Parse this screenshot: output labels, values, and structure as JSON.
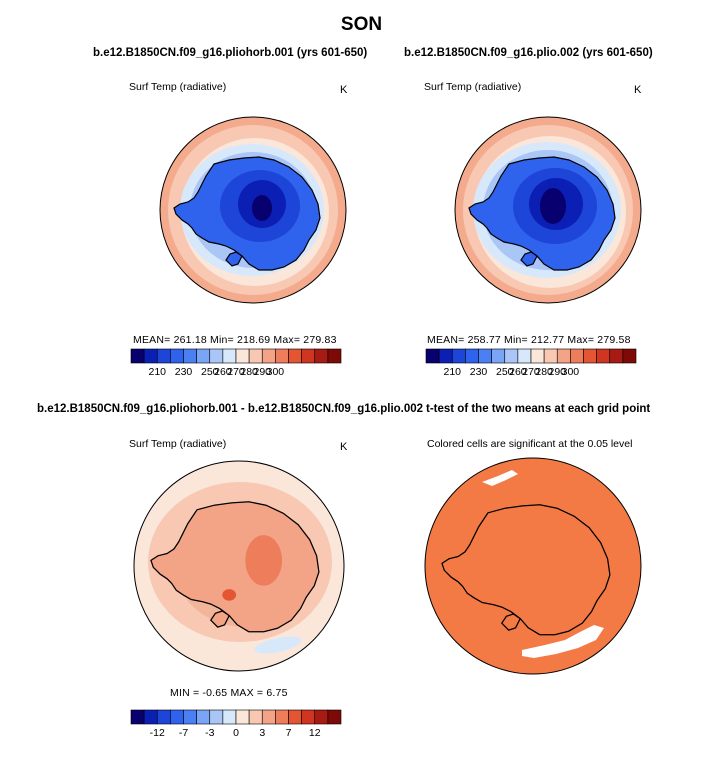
{
  "figure": {
    "title": "SON"
  },
  "panels": {
    "top_left": {
      "title": "b.e12.B1850CN.f09_g16.pliohorb.001 (yrs 601-650)",
      "variable": "Surf Temp (radiative)",
      "unit": "K",
      "stats": "MEAN= 261.18   Min= 218.69   Max= 279.83",
      "colorbar_ticks": [
        "210",
        "230",
        "250",
        "260",
        "270",
        "280",
        "290",
        "300"
      ]
    },
    "top_right": {
      "title": "b.e12.B1850CN.f09_g16.plio.002 (yrs 601-650)",
      "variable": "Surf Temp (radiative)",
      "unit": "K",
      "stats": "MEAN= 258.77   Min= 212.77   Max= 279.58",
      "colorbar_ticks": [
        "210",
        "230",
        "250",
        "260",
        "270",
        "280",
        "290",
        "300"
      ]
    },
    "bottom_left": {
      "title": "b.e12.B1850CN.f09_g16.pliohorb.001 - b.e12.B1850CN.f09_g16.plio.002",
      "variable": "Surf Temp (radiative)",
      "unit": "K",
      "stats": "MIN =  -0.65  MAX =   6.75",
      "colorbar_ticks": [
        "-12",
        "-7",
        "-3",
        "0",
        "3",
        "7",
        "12"
      ]
    },
    "bottom_right": {
      "title": "t-test of the two means at each grid point",
      "note": "Colored cells are significant at the 0.05 level"
    }
  },
  "colors": {
    "abs_scale": [
      "#08006e",
      "#0c1fb5",
      "#1d45d8",
      "#2f63ee",
      "#4a80f4",
      "#7aa4f5",
      "#a9c6f7",
      "#d8e8fb",
      "#fbe6da",
      "#f8c8b3",
      "#f3a487",
      "#ee7d5b",
      "#e45532",
      "#cf3520",
      "#a81b12",
      "#7d0a06"
    ],
    "diff_scale": [
      "#08006e",
      "#0c1fb5",
      "#1d45d8",
      "#2f63ee",
      "#4a80f4",
      "#7aa4f5",
      "#a9c6f7",
      "#d8e8fb",
      "#fbe6da",
      "#f8c8b3",
      "#f3a487",
      "#ee7d5b",
      "#e45532",
      "#cf3520",
      "#a81b12",
      "#7d0a06"
    ],
    "significant": "#f47a45"
  }
}
